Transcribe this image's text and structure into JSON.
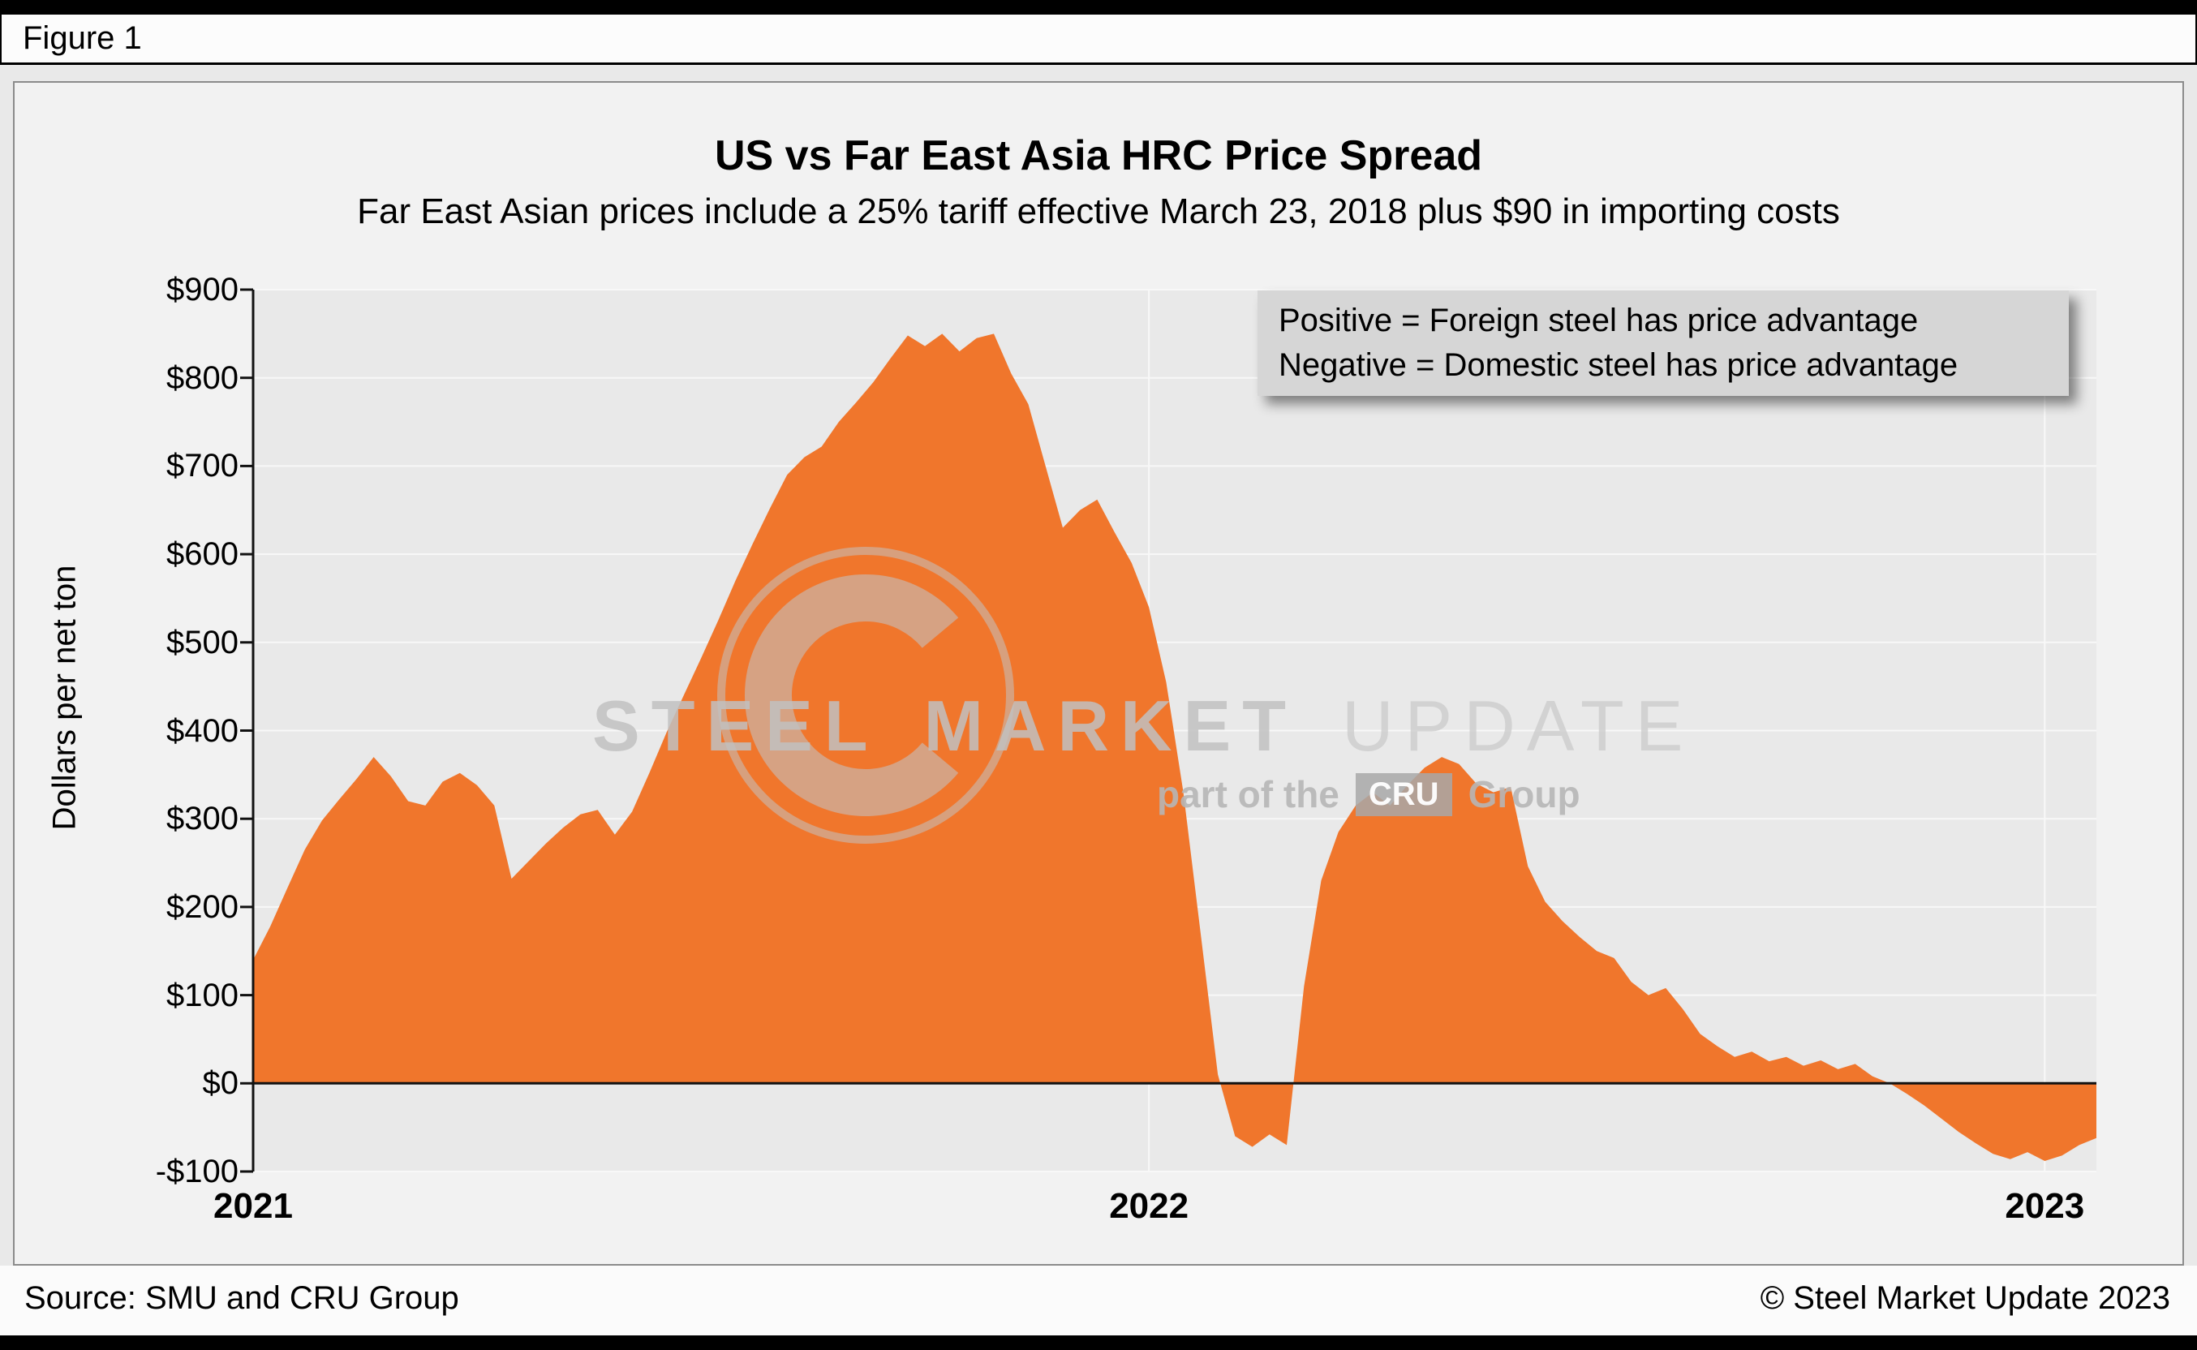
{
  "header": {
    "figure_label": "Figure 1"
  },
  "chart_data": {
    "type": "area",
    "title": "US vs Far East Asia HRC Price Spread",
    "subtitle": "Far East Asian prices include a 25% tariff effective March 23, 2018 plus $90 in importing costs",
    "ylabel": "Dollars per net ton",
    "ylim": [
      -100,
      900
    ],
    "ytick_step": 100,
    "ytick_labels": [
      "$900",
      "$800",
      "$700",
      "$600",
      "$500",
      "$400",
      "$300",
      "$200",
      "$100",
      "$0",
      "-$100"
    ],
    "x_tick_labels": [
      "2021",
      "2022",
      "2023"
    ],
    "x_tick_indices": [
      0,
      52,
      104
    ],
    "frequency": "weekly",
    "series_label": "US minus Far East Asia HRC price spread, dollars per net ton",
    "values": [
      140,
      178,
      222,
      265,
      298,
      322,
      345,
      370,
      348,
      320,
      315,
      342,
      352,
      338,
      315,
      232,
      252,
      272,
      290,
      305,
      310,
      282,
      308,
      352,
      398,
      440,
      482,
      525,
      570,
      612,
      652,
      690,
      710,
      722,
      750,
      772,
      795,
      822,
      848,
      836,
      850,
      830,
      845,
      850,
      805,
      770,
      700,
      630,
      650,
      662,
      625,
      590,
      540,
      455,
      330,
      170,
      10,
      -60,
      -72,
      -58,
      -70,
      110,
      230,
      285,
      315,
      330,
      315,
      338,
      358,
      370,
      362,
      340,
      330,
      336,
      246,
      206,
      184,
      166,
      150,
      142,
      115,
      100,
      108,
      84,
      56,
      42,
      30,
      36,
      25,
      30,
      20,
      26,
      16,
      22,
      8,
      0,
      -12,
      -25,
      -40,
      -55,
      -68,
      -80,
      -86,
      -78,
      -88,
      -82,
      -70,
      -62
    ],
    "area_color": "#F0762C",
    "plot_bg": "#E9E9E9",
    "grid_color": "#F8F8F8",
    "zero_line": true,
    "grid": true,
    "legend_position": "top-right",
    "annotation": {
      "line1": "Positive = Foreign steel has price advantage",
      "line2": "Negative = Domestic steel has price advantage"
    }
  },
  "watermark": {
    "steel": "STEEL",
    "market": "MARKET",
    "update": "UPDATE",
    "part_of_the": "part of the",
    "cru": "CRU",
    "group": "Group"
  },
  "footer": {
    "source": "Source: SMU and CRU Group",
    "copyright": "© Steel Market Update 2023"
  }
}
